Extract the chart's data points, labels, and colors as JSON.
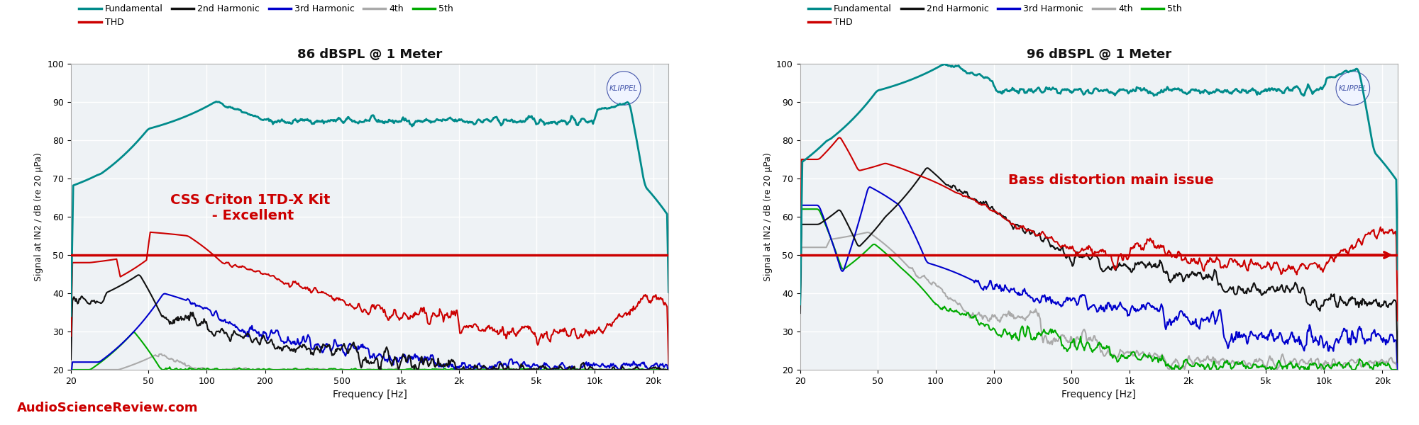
{
  "title_left": "86 dBSPL @ 1 Meter",
  "title_right": "96 dBSPL @ 1 Meter",
  "annotation_left": "CSS Criton 1TD-X Kit\n - Excellent",
  "annotation_right": "Bass distortion main issue",
  "ylabel": "Signal at IN2 / dB (re 20 μPa)",
  "xlabel": "Frequency [Hz]",
  "watermark": "AudioScienceReview.com",
  "klippel_text": "KLIPPEL",
  "ylim": [
    20,
    100
  ],
  "xlim_low": 20,
  "xlim_high": 24000,
  "xticks": [
    20,
    50,
    100,
    200,
    500,
    1000,
    2000,
    5000,
    10000,
    20000
  ],
  "xticklabels": [
    "20",
    "50",
    "100",
    "200",
    "500",
    "1k",
    "2k",
    "5k",
    "10k",
    "20k"
  ],
  "yticks": [
    20,
    30,
    40,
    50,
    60,
    70,
    80,
    90,
    100
  ],
  "hline_y": 50,
  "legend_entries": [
    "Fundamental",
    "THD",
    "2nd Harmonic",
    "3rd Harmonic",
    "4th",
    "5th"
  ],
  "legend_colors": [
    "#008B8B",
    "#CC0000",
    "#111111",
    "#0000CC",
    "#AAAAAA",
    "#00AA00"
  ],
  "line_widths": [
    2.0,
    1.5,
    1.5,
    1.5,
    1.5,
    1.5
  ],
  "bg_color": "#EEF2F5",
  "grid_color": "#FFFFFF",
  "annotation_color": "#CC0000",
  "hline_color": "#CC0000"
}
